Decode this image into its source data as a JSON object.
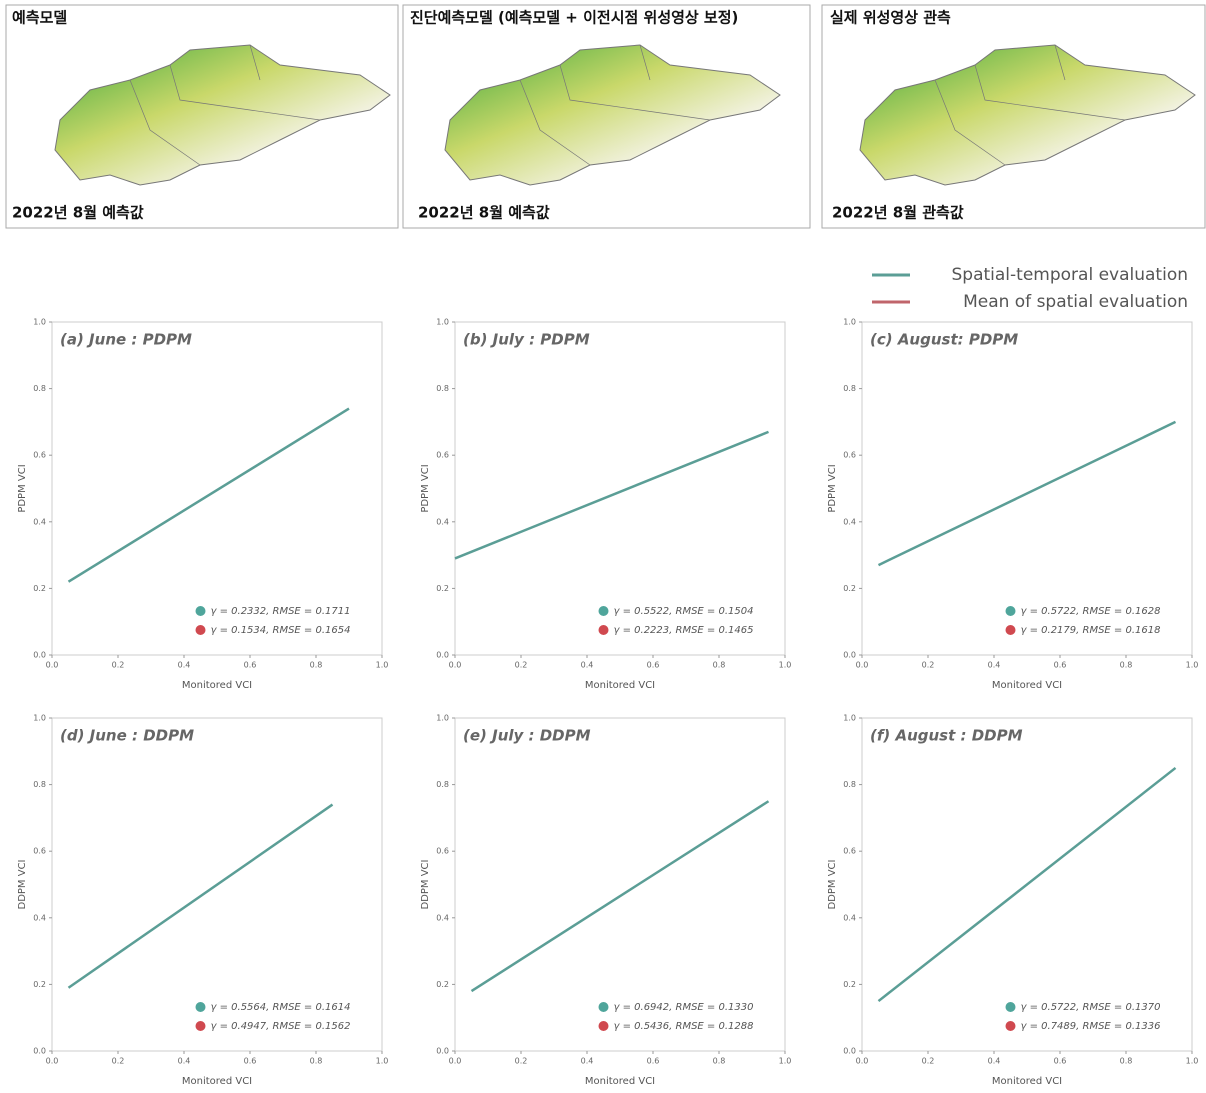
{
  "maps": [
    {
      "title": "예측모델",
      "caption": "2022년 8월 예측값"
    },
    {
      "title": "진단예측모델 (예측모델 + 이전시점 위성영상 보정)",
      "caption": "2022년 8월 예측값"
    },
    {
      "title": "실제 위성영상 관측",
      "caption": "2022년 8월 관측값"
    }
  ],
  "legend": [
    {
      "name": "Spatial-temporal evaluation",
      "color": "#5b9e96"
    },
    {
      "name": "Mean of spatial evaluation",
      "color": "#c0656b"
    }
  ],
  "chart_data": [
    {
      "type": "line",
      "title": "(a) June : PDPM",
      "xlabel": "Monitored VCI",
      "ylabel": "PDPM VCI",
      "xlim": [
        0,
        1
      ],
      "ylim": [
        0,
        1
      ],
      "xticks": [
        {
          "value": 0,
          "label": "0.0"
        },
        {
          "value": 0.2,
          "label": "0.2"
        },
        {
          "value": 0.4,
          "label": "0.4"
        },
        {
          "value": 0.6,
          "label": "0.6"
        },
        {
          "value": 0.8,
          "label": "0.8"
        },
        {
          "value": 1,
          "label": "1.0"
        }
      ],
      "yticks": [
        {
          "value": 0,
          "label": "0.0"
        },
        {
          "value": 0.2,
          "label": "0.2"
        },
        {
          "value": 0.4,
          "label": "0.4"
        },
        {
          "value": 0.6,
          "label": "0.6"
        },
        {
          "value": 0.8,
          "label": "0.8"
        },
        {
          "value": 1,
          "label": "1.0"
        }
      ],
      "x": [
        0.05,
        0.9
      ],
      "series": [
        {
          "color": "#5b9e96",
          "values": [
            0.22,
            0.74
          ]
        }
      ],
      "annotations": [
        {
          "text": "γ = 0.2332, RMSE = 0.1711",
          "color": "#4fa59b"
        },
        {
          "text": "γ = 0.1534, RMSE = 0.1654",
          "color": "#d0494f"
        }
      ]
    },
    {
      "type": "line",
      "title": "(b) July : PDPM",
      "xlabel": "Monitored VCI",
      "ylabel": "PDPM VCI",
      "xlim": [
        0,
        1
      ],
      "ylim": [
        0,
        1
      ],
      "xticks": [
        {
          "value": 0,
          "label": "0.0"
        },
        {
          "value": 0.2,
          "label": "0.2"
        },
        {
          "value": 0.4,
          "label": "0.4"
        },
        {
          "value": 0.6,
          "label": "0.6"
        },
        {
          "value": 0.8,
          "label": "0.8"
        },
        {
          "value": 1,
          "label": "1.0"
        }
      ],
      "yticks": [
        {
          "value": 0,
          "label": "0.0"
        },
        {
          "value": 0.2,
          "label": "0.2"
        },
        {
          "value": 0.4,
          "label": "0.4"
        },
        {
          "value": 0.6,
          "label": "0.6"
        },
        {
          "value": 0.8,
          "label": "0.8"
        },
        {
          "value": 1,
          "label": "1.0"
        }
      ],
      "x": [
        0,
        0.95
      ],
      "series": [
        {
          "color": "#5b9e96",
          "values": [
            0.29,
            0.67
          ]
        }
      ],
      "annotations": [
        {
          "text": "γ = 0.5522, RMSE = 0.1504",
          "color": "#4fa59b"
        },
        {
          "text": "γ = 0.2223, RMSE = 0.1465",
          "color": "#d0494f"
        }
      ]
    },
    {
      "type": "line",
      "title": "(c) August: PDPM",
      "xlabel": "Monitored VCI",
      "ylabel": "PDPM VCI",
      "xlim": [
        0,
        1
      ],
      "ylim": [
        0,
        1
      ],
      "xticks": [
        {
          "value": 0,
          "label": "0.0"
        },
        {
          "value": 0.2,
          "label": "0.2"
        },
        {
          "value": 0.4,
          "label": "0.4"
        },
        {
          "value": 0.6,
          "label": "0.6"
        },
        {
          "value": 0.8,
          "label": "0.8"
        },
        {
          "value": 1,
          "label": "1.0"
        }
      ],
      "yticks": [
        {
          "value": 0,
          "label": "0.0"
        },
        {
          "value": 0.2,
          "label": "0.2"
        },
        {
          "value": 0.4,
          "label": "0.4"
        },
        {
          "value": 0.6,
          "label": "0.6"
        },
        {
          "value": 0.8,
          "label": "0.8"
        },
        {
          "value": 1,
          "label": "1.0"
        }
      ],
      "x": [
        0.05,
        0.95
      ],
      "series": [
        {
          "color": "#5b9e96",
          "values": [
            0.27,
            0.7
          ]
        }
      ],
      "annotations": [
        {
          "text": "γ = 0.5722, RMSE = 0.1628",
          "color": "#4fa59b"
        },
        {
          "text": "γ = 0.2179, RMSE = 0.1618",
          "color": "#d0494f"
        }
      ]
    },
    {
      "type": "line",
      "title": "(d) June : DDPM",
      "xlabel": "Monitored VCI",
      "ylabel": "DDPM VCI",
      "xlim": [
        0,
        1
      ],
      "ylim": [
        0,
        1
      ],
      "xticks": [
        {
          "value": 0,
          "label": "0.0"
        },
        {
          "value": 0.2,
          "label": "0.2"
        },
        {
          "value": 0.4,
          "label": "0.4"
        },
        {
          "value": 0.6,
          "label": "0.6"
        },
        {
          "value": 0.8,
          "label": "0.8"
        },
        {
          "value": 1,
          "label": "1.0"
        }
      ],
      "yticks": [
        {
          "value": 0,
          "label": "0.0"
        },
        {
          "value": 0.2,
          "label": "0.2"
        },
        {
          "value": 0.4,
          "label": "0.4"
        },
        {
          "value": 0.6,
          "label": "0.6"
        },
        {
          "value": 0.8,
          "label": "0.8"
        },
        {
          "value": 1,
          "label": "1.0"
        }
      ],
      "x": [
        0.05,
        0.85
      ],
      "series": [
        {
          "color": "#5b9e96",
          "values": [
            0.19,
            0.74
          ]
        }
      ],
      "annotations": [
        {
          "text": "γ = 0.5564, RMSE = 0.1614",
          "color": "#4fa59b"
        },
        {
          "text": "γ = 0.4947, RMSE = 0.1562",
          "color": "#d0494f"
        }
      ]
    },
    {
      "type": "line",
      "title": "(e) July : DDPM",
      "xlabel": "Monitored VCI",
      "ylabel": "DDPM VCI",
      "xlim": [
        0,
        1
      ],
      "ylim": [
        0,
        1
      ],
      "xticks": [
        {
          "value": 0,
          "label": "0.0"
        },
        {
          "value": 0.2,
          "label": "0.2"
        },
        {
          "value": 0.4,
          "label": "0.4"
        },
        {
          "value": 0.6,
          "label": "0.6"
        },
        {
          "value": 0.8,
          "label": "0.8"
        },
        {
          "value": 1,
          "label": "1.0"
        }
      ],
      "yticks": [
        {
          "value": 0,
          "label": "0.0"
        },
        {
          "value": 0.2,
          "label": "0.2"
        },
        {
          "value": 0.4,
          "label": "0.4"
        },
        {
          "value": 0.6,
          "label": "0.6"
        },
        {
          "value": 0.8,
          "label": "0.8"
        },
        {
          "value": 1,
          "label": "1.0"
        }
      ],
      "x": [
        0.05,
        0.95
      ],
      "series": [
        {
          "color": "#5b9e96",
          "values": [
            0.18,
            0.75
          ]
        }
      ],
      "annotations": [
        {
          "text": "γ = 0.6942, RMSE = 0.1330",
          "color": "#4fa59b"
        },
        {
          "text": "γ = 0.5436, RMSE = 0.1288",
          "color": "#d0494f"
        }
      ]
    },
    {
      "type": "line",
      "title": "(f) August : DDPM",
      "xlabel": "Monitored VCI",
      "ylabel": "DDPM VCI",
      "xlim": [
        0,
        1
      ],
      "ylim": [
        0,
        1
      ],
      "xticks": [
        {
          "value": 0,
          "label": "0.0"
        },
        {
          "value": 0.2,
          "label": "0.2"
        },
        {
          "value": 0.4,
          "label": "0.4"
        },
        {
          "value": 0.6,
          "label": "0.6"
        },
        {
          "value": 0.8,
          "label": "0.8"
        },
        {
          "value": 1,
          "label": "1.0"
        }
      ],
      "yticks": [
        {
          "value": 0,
          "label": "0.0"
        },
        {
          "value": 0.2,
          "label": "0.2"
        },
        {
          "value": 0.4,
          "label": "0.4"
        },
        {
          "value": 0.6,
          "label": "0.6"
        },
        {
          "value": 0.8,
          "label": "0.8"
        },
        {
          "value": 1,
          "label": "1.0"
        }
      ],
      "x": [
        0.05,
        0.95
      ],
      "series": [
        {
          "color": "#5b9e96",
          "values": [
            0.15,
            0.85
          ]
        }
      ],
      "annotations": [
        {
          "text": "γ = 0.5722, RMSE = 0.1370",
          "color": "#4fa59b"
        },
        {
          "text": "γ = 0.7489, RMSE = 0.1336",
          "color": "#d0494f"
        }
      ]
    }
  ]
}
